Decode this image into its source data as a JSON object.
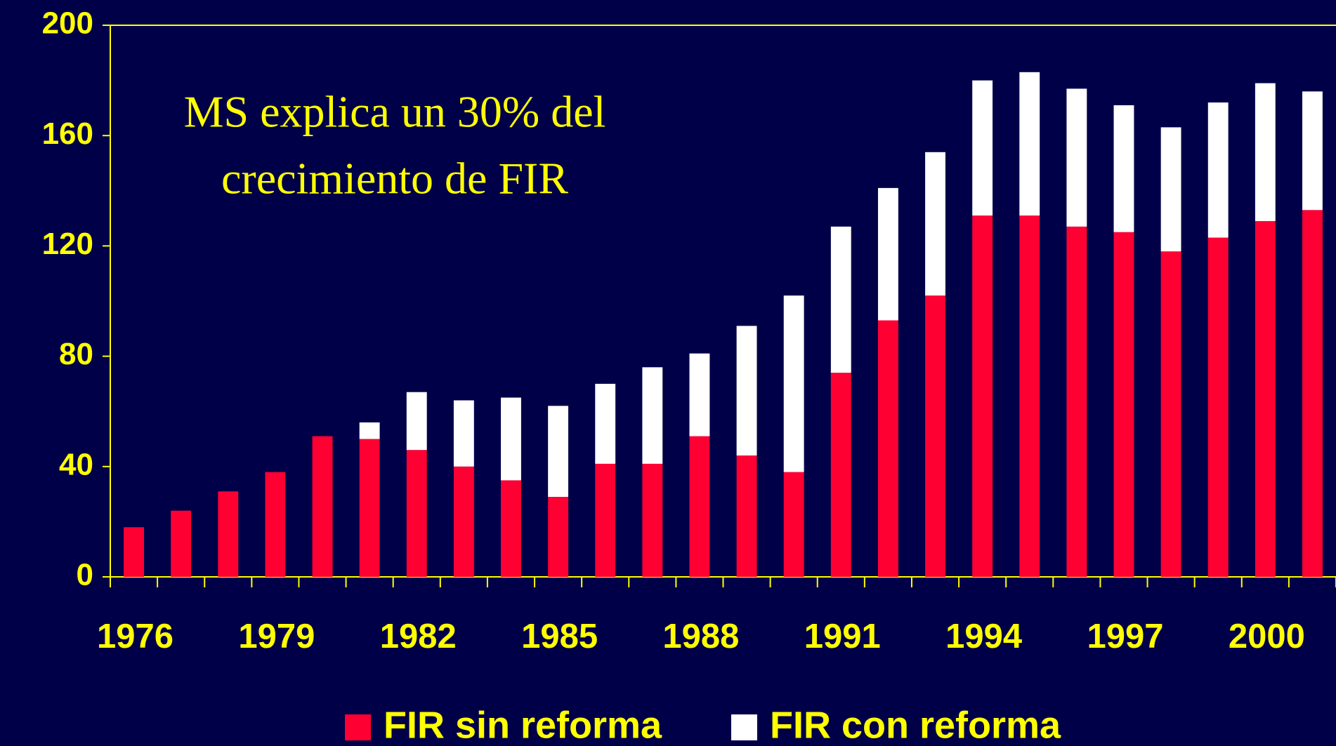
{
  "chart_data": {
    "type": "stacked_bar",
    "annotation": [
      "MS explica un 30% del",
      "crecimiento de FIR"
    ],
    "categories": [
      "1976",
      null,
      null,
      "1979",
      null,
      null,
      "1982",
      null,
      null,
      "1985",
      null,
      null,
      "1988",
      null,
      null,
      "1991",
      null,
      null,
      "1994",
      null,
      null,
      "1997",
      null,
      null,
      "2000",
      null
    ],
    "series": [
      {
        "name": "FIR sin reforma",
        "color": "#ff0033",
        "values": [
          18,
          24,
          31,
          38,
          51,
          50,
          46,
          40,
          35,
          29,
          41,
          41,
          51,
          44,
          38,
          74,
          93,
          102,
          131,
          131,
          127,
          125,
          118,
          123,
          129,
          133
        ]
      },
      {
        "name": "FIR con reforma",
        "color": "#ffffff",
        "values": [
          null,
          null,
          null,
          null,
          null,
          6,
          21,
          24,
          30,
          33,
          29,
          35,
          30,
          47,
          64,
          53,
          48,
          52,
          49,
          52,
          50,
          46,
          45,
          49,
          50,
          43
        ]
      }
    ],
    "ylim": [
      0,
      200
    ],
    "yticks": [
      0,
      40,
      80,
      120,
      160,
      200
    ],
    "legend": "bottom",
    "background": "#000048",
    "text_color": "#ffff00"
  }
}
